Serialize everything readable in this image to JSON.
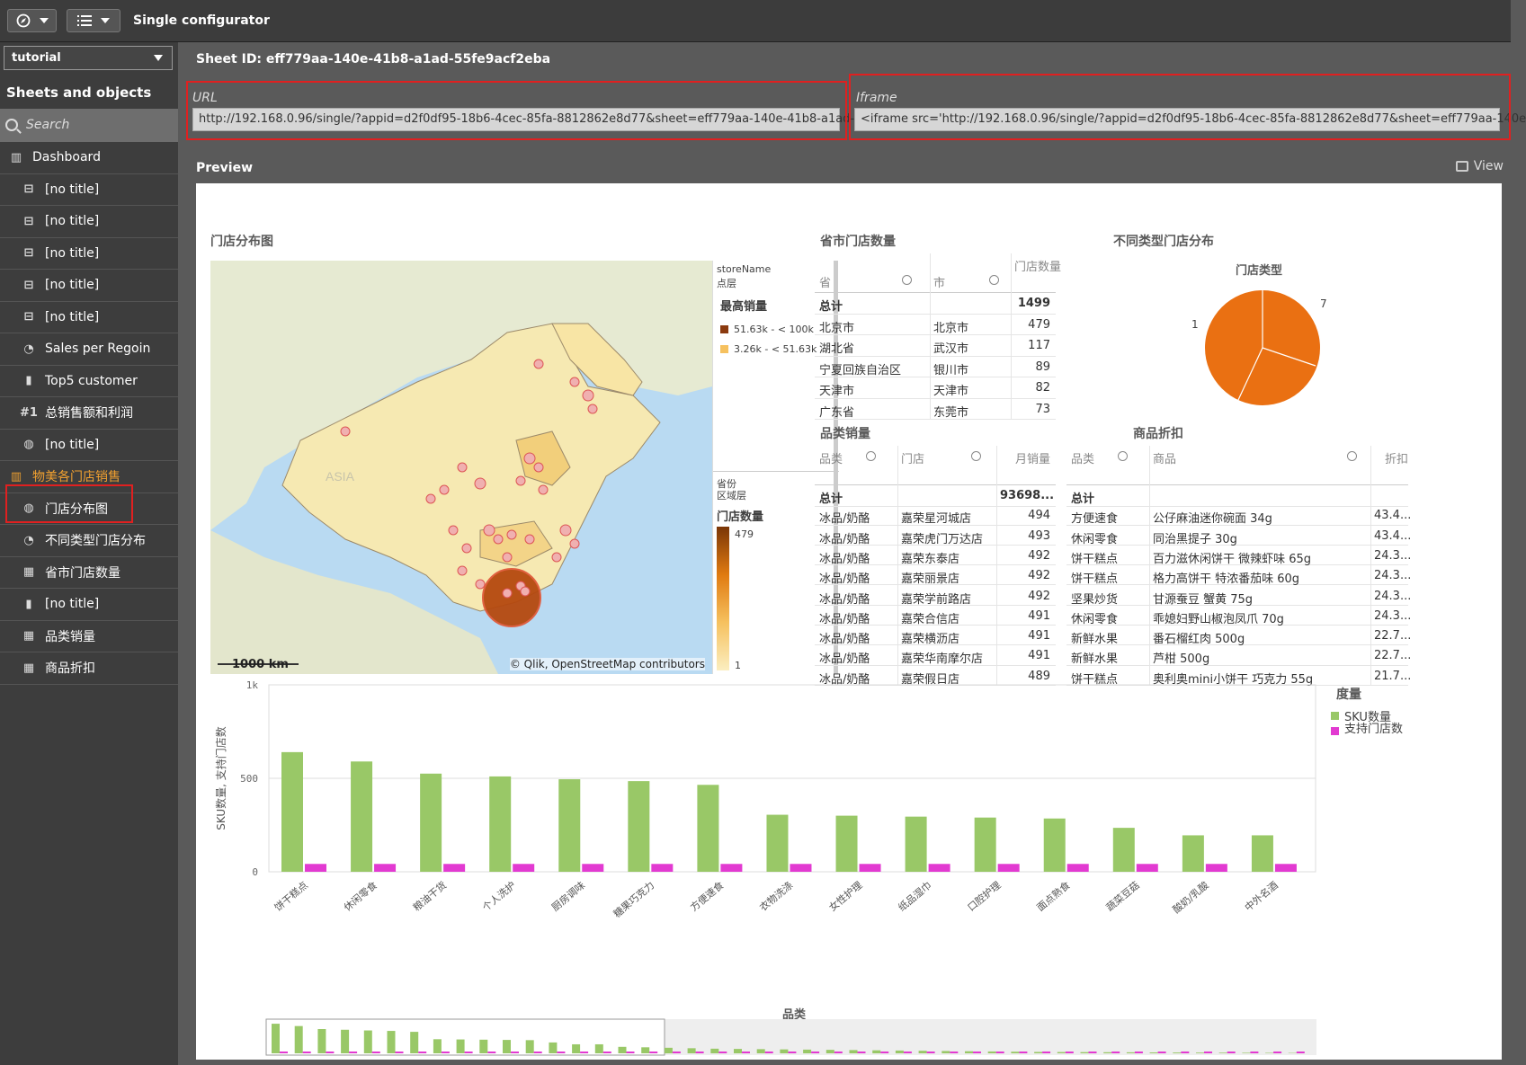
{
  "topbar": {
    "title": "Single configurator"
  },
  "sidebar": {
    "app": "tutorial",
    "heading": "Sheets and objects",
    "search_placeholder": "Search",
    "items": [
      {
        "label": "Dashboard",
        "icon": "dashboard-icon",
        "level": "top"
      },
      {
        "label": "[no title]",
        "icon": "filter-pane-icon",
        "level": "child"
      },
      {
        "label": "[no title]",
        "icon": "filter-pane-icon",
        "level": "child"
      },
      {
        "label": "[no title]",
        "icon": "filter-pane-icon",
        "level": "child"
      },
      {
        "label": "[no title]",
        "icon": "filter-pane-icon",
        "level": "child"
      },
      {
        "label": "[no title]",
        "icon": "filter-pane-icon",
        "level": "child"
      },
      {
        "label": "Sales per Regoin",
        "icon": "pie-chart-icon",
        "level": "child"
      },
      {
        "label": "Top5 customer",
        "icon": "bar-chart-icon",
        "level": "child"
      },
      {
        "label": "总销售额和利润",
        "icon": "kpi-icon",
        "level": "child"
      },
      {
        "label": "[no title]",
        "icon": "map-icon",
        "level": "child"
      },
      {
        "label": "物美各门店销售",
        "icon": "dashboard-icon",
        "level": "top",
        "active": true
      },
      {
        "label": "门店分布图",
        "icon": "map-icon",
        "level": "child"
      },
      {
        "label": "不同类型门店分布",
        "icon": "pie-chart-icon",
        "level": "child"
      },
      {
        "label": "省市门店数量",
        "icon": "table-icon",
        "level": "child"
      },
      {
        "label": "[no title]",
        "icon": "bar-chart-icon",
        "level": "child"
      },
      {
        "label": "品类销量",
        "icon": "table-icon",
        "level": "child"
      },
      {
        "label": "商品折扣",
        "icon": "table-icon",
        "level": "child"
      }
    ]
  },
  "main": {
    "sheet_id": "Sheet ID: eff779aa-140e-41b8-a1ad-55fe9acf2eba",
    "url_label": "URL",
    "url_value": "http://192.168.0.96/single/?appid=d2f0df95-18b6-4cec-85fa-8812862e8d77&sheet=eff779aa-140e-41b8-a1ad-",
    "iframe_label": "Iframe",
    "iframe_value": "<iframe src='http://192.168.0.96/single/?appid=d2f0df95-18b6-4cec-85fa-8812862e8d77&sheet=eff779aa-140e",
    "preview_label": "Preview",
    "view_label": "View"
  },
  "map_panel": {
    "title": "门店分布图",
    "scale": "1000 km",
    "attribution": "© Qlik, OpenStreetMap contributors",
    "asia_label": "ASIA",
    "legend": {
      "layer1_name": "storeName",
      "layer1_type": "点层",
      "layer1_measure": "最高销量",
      "items": [
        {
          "label": "51.63k - < 100k",
          "color": "#8b3a0f"
        },
        {
          "label": "3.26k - < 51.63k",
          "color": "#f6c15f"
        }
      ],
      "layer2_name": "省份",
      "layer2_type": "区域层",
      "layer2_measure": "门店数量",
      "max": "479",
      "min": "1"
    }
  },
  "province_table": {
    "title": "省市门店数量",
    "headers": [
      "省",
      "市",
      "门店数量"
    ],
    "total_label": "总计",
    "total": "1499",
    "rows": [
      [
        "北京市",
        "北京市",
        "479"
      ],
      [
        "湖北省",
        "武汉市",
        "117"
      ],
      [
        "宁夏回族自治区",
        "银川市",
        "89"
      ],
      [
        "天津市",
        "天津市",
        "82"
      ],
      [
        "广东省",
        "东莞市",
        "73"
      ]
    ]
  },
  "pie_panel": {
    "title": "不同类型门店分布",
    "subtitle": "门店类型",
    "label_left": "1",
    "label_right": "7"
  },
  "category_table": {
    "title": "品类销量",
    "headers": [
      "品类",
      "门店",
      "月销量"
    ],
    "total_label": "总计",
    "total": "93698...",
    "rows": [
      [
        "冰品/奶酪",
        "嘉荣星河城店",
        "494"
      ],
      [
        "冰品/奶酪",
        "嘉荣虎门万达店",
        "493"
      ],
      [
        "冰品/奶酪",
        "嘉荣东泰店",
        "492"
      ],
      [
        "冰品/奶酪",
        "嘉荣丽景店",
        "492"
      ],
      [
        "冰品/奶酪",
        "嘉荣学前路店",
        "492"
      ],
      [
        "冰品/奶酪",
        "嘉荣合信店",
        "491"
      ],
      [
        "冰品/奶酪",
        "嘉荣横沥店",
        "491"
      ],
      [
        "冰品/奶酪",
        "嘉荣华南摩尔店",
        "491"
      ],
      [
        "冰品/奶酪",
        "嘉荣假日店",
        "489"
      ]
    ]
  },
  "discount_table": {
    "title": "商品折扣",
    "headers": [
      "品类",
      "商品",
      "折扣"
    ],
    "total_label": "总计",
    "rows": [
      [
        "方便速食",
        "公仔麻油迷你碗面 34g",
        "43.4..."
      ],
      [
        "休闲零食",
        "同治黑提子 30g",
        "43.4..."
      ],
      [
        "饼干糕点",
        "百力滋休闲饼干 微辣虾味 65g",
        "24.3..."
      ],
      [
        "饼干糕点",
        "格力高饼干 特浓番茄味 60g",
        "24.3..."
      ],
      [
        "坚果炒货",
        "甘源蚕豆 蟹黄 75g",
        "24.3..."
      ],
      [
        "休闲零食",
        "乖媳妇野山椒泡凤爪 70g",
        "24.3..."
      ],
      [
        "新鲜水果",
        "番石榴红肉 500g",
        "22.7..."
      ],
      [
        "新鲜水果",
        "芦柑 500g",
        "22.7..."
      ],
      [
        "饼干糕点",
        "奥利奥mini小饼干 巧克力 55g",
        "21.7..."
      ]
    ]
  },
  "chart_data": {
    "type": "bar",
    "xlabel": "品类",
    "ylabel": "SKU数量, 支持门店数",
    "ylim": [
      0,
      1000
    ],
    "yticks": [
      "1k",
      "500",
      "0"
    ],
    "legend_title": "度量",
    "legend_position": "right",
    "categories": [
      "饼干糕点",
      "休闲零食",
      "粮油干货",
      "个人洗护",
      "厨房调味",
      "糖果巧克力",
      "方便速食",
      "衣物洗涤",
      "女性护理",
      "纸品湿巾",
      "口腔护理",
      "面点熟食",
      "蔬菜豆菇",
      "酸奶/乳酸",
      "中外名酒"
    ],
    "series": [
      {
        "name": "SKU数量",
        "color": "#99c867",
        "values": [
          640,
          590,
          525,
          510,
          495,
          485,
          465,
          305,
          300,
          295,
          290,
          285,
          235,
          195,
          195
        ]
      },
      {
        "name": "支持门店数",
        "color": "#e23ad1",
        "values": [
          42,
          42,
          42,
          42,
          42,
          42,
          42,
          42,
          42,
          42,
          42,
          42,
          42,
          42,
          42
        ]
      }
    ]
  }
}
